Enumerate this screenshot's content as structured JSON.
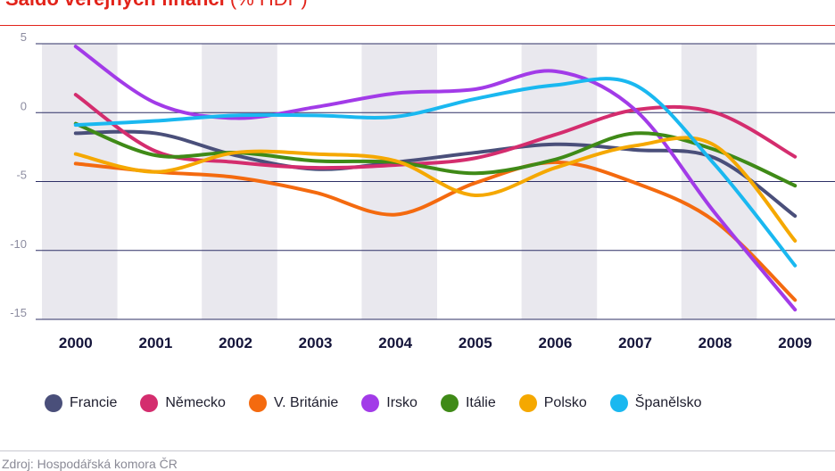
{
  "title": {
    "main": "Saldo veřejných financí",
    "unit": "(% HDP)"
  },
  "source": "Zdroj: Hospodářská komora ČR",
  "chart_data": {
    "type": "line",
    "title": "Saldo veřejných financí (% HDP)",
    "categories": [
      "2000",
      "2001",
      "2002",
      "2003",
      "2004",
      "2005",
      "2006",
      "2007",
      "2008",
      "2009"
    ],
    "y_ticks": [
      5,
      0,
      -5,
      -10,
      -15
    ],
    "y_tick_labels": [
      "5",
      "0",
      "-5",
      "-10",
      "-15"
    ],
    "ylim": [
      -15,
      5
    ],
    "grid": true,
    "legend_position": "bottom",
    "series": [
      {
        "name": "Francie",
        "color": "#4a4f7a",
        "values": [
          -1.5,
          -1.5,
          -3.1,
          -4.1,
          -3.6,
          -2.9,
          -2.3,
          -2.7,
          -3.3,
          -7.5
        ]
      },
      {
        "name": "Německo",
        "color": "#d42d6e",
        "values": [
          1.3,
          -2.8,
          -3.6,
          -4.0,
          -3.8,
          -3.3,
          -1.6,
          0.2,
          0.0,
          -3.2
        ]
      },
      {
        "name": "V. Británie",
        "color": "#f46a0f",
        "values": [
          -3.7,
          -4.3,
          -4.7,
          -5.8,
          -7.4,
          -5.1,
          -3.6,
          -5.1,
          -7.9,
          -13.6
        ]
      },
      {
        "name": "Irsko",
        "color": "#a23be8",
        "values": [
          4.8,
          0.7,
          -0.4,
          0.4,
          1.4,
          1.7,
          3.0,
          0.2,
          -7.3,
          -14.3
        ]
      },
      {
        "name": "Itálie",
        "color": "#3f8a17",
        "values": [
          -0.8,
          -3.1,
          -2.9,
          -3.5,
          -3.6,
          -4.4,
          -3.4,
          -1.5,
          -2.7,
          -5.3
        ]
      },
      {
        "name": "Polsko",
        "color": "#f5a800",
        "values": [
          -3.0,
          -4.3,
          -2.9,
          -3.0,
          -3.5,
          -6.0,
          -4.0,
          -2.4,
          -2.4,
          -9.3
        ]
      },
      {
        "name": "Španělsko",
        "color": "#1ab8f0",
        "values": [
          -0.9,
          -0.6,
          -0.2,
          -0.2,
          -0.3,
          1.0,
          2.0,
          2.0,
          -3.8,
          -11.1
        ]
      }
    ]
  }
}
